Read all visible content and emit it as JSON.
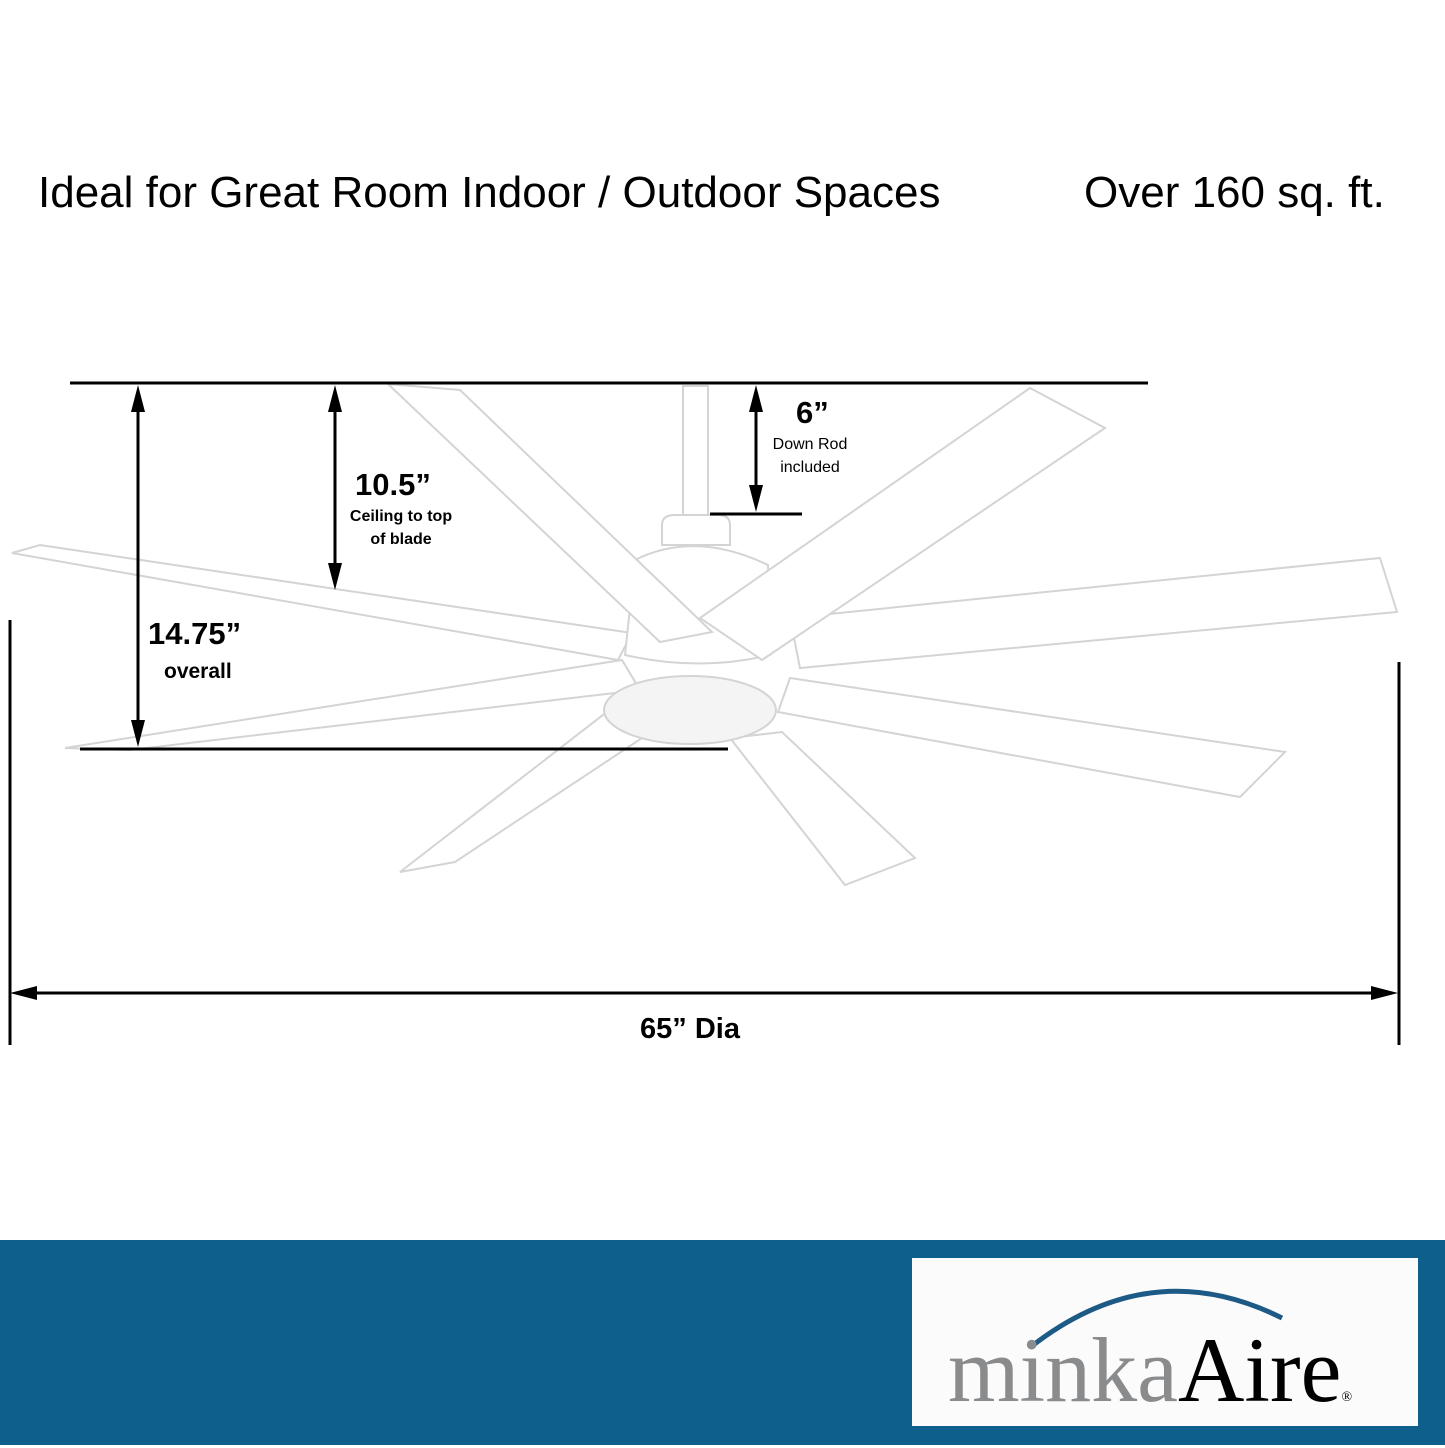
{
  "header": {
    "title": "Ideal for Great Room Indoor / Outdoor Spaces",
    "area": "Over 160 sq. ft."
  },
  "dimensions": {
    "downrod": {
      "value": "6”",
      "label_line1": "Down Rod",
      "label_line2": "included"
    },
    "ceiling_to_blade": {
      "value": "10.5”",
      "label_line1": "Ceiling to top",
      "label_line2": "of blade"
    },
    "overall_height": {
      "value": "14.75”",
      "label": "overall"
    },
    "diameter": {
      "value": "65” Dia"
    }
  },
  "footer": {
    "band_color": "#0f5f8c",
    "logo": {
      "part1": "minka",
      "part2": "Aire",
      "mark": "®"
    }
  }
}
